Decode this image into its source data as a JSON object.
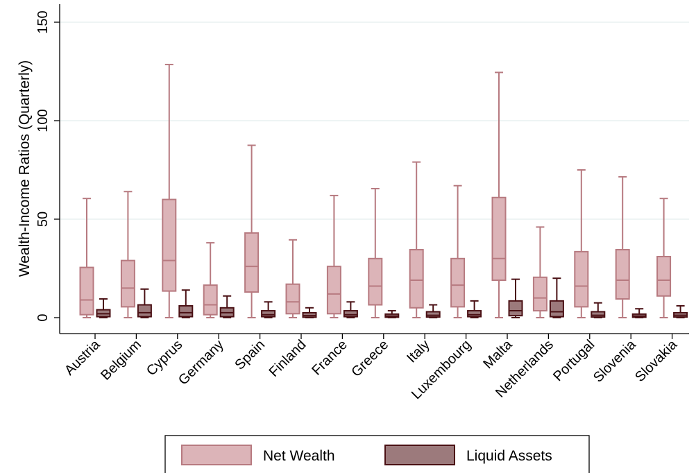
{
  "chart_data": {
    "type": "box",
    "title": "",
    "xlabel": "",
    "ylabel": "Wealth-Income Ratios (Quarterly)",
    "ylim": [
      -8,
      160
    ],
    "yticks": [
      0,
      50,
      100,
      150
    ],
    "yticks_labels": [
      "0",
      "50",
      "100",
      "150"
    ],
    "grid": true,
    "legend_position": "bottom",
    "categories": [
      "Austria",
      "Belgium",
      "Cyprus",
      "Germany",
      "Spain",
      "Finland",
      "France",
      "Greece",
      "Italy",
      "Luxembourg",
      "Malta",
      "Netherlands",
      "Portugal",
      "Slovenia",
      "Slovakia"
    ],
    "series": [
      {
        "name": "Net Wealth",
        "fill": "#dcb4b8",
        "stroke": "#b77a80",
        "boxes": [
          {
            "whisker_low": 0,
            "q1": 1.5,
            "median": 9,
            "q3": 25.5,
            "whisker_high": 60.5
          },
          {
            "whisker_low": 0,
            "q1": 5.5,
            "median": 15,
            "q3": 29,
            "whisker_high": 64
          },
          {
            "whisker_low": 0,
            "q1": 13.5,
            "median": 29,
            "q3": 60,
            "whisker_high": 128.5
          },
          {
            "whisker_low": 0,
            "q1": 1.5,
            "median": 6.5,
            "q3": 16.5,
            "whisker_high": 38
          },
          {
            "whisker_low": 0,
            "q1": 13,
            "median": 26,
            "q3": 43,
            "whisker_high": 87.5
          },
          {
            "whisker_low": 0,
            "q1": 2,
            "median": 8,
            "q3": 17,
            "whisker_high": 39.5
          },
          {
            "whisker_low": 0,
            "q1": 2,
            "median": 12,
            "q3": 26,
            "whisker_high": 62
          },
          {
            "whisker_low": 0,
            "q1": 6.5,
            "median": 16,
            "q3": 30,
            "whisker_high": 65.5
          },
          {
            "whisker_low": 0,
            "q1": 5,
            "median": 19,
            "q3": 34.5,
            "whisker_high": 79
          },
          {
            "whisker_low": 0,
            "q1": 5.5,
            "median": 16.5,
            "q3": 30,
            "whisker_high": 67
          },
          {
            "whisker_low": 0,
            "q1": 19,
            "median": 30,
            "q3": 61,
            "whisker_high": 124.5
          },
          {
            "whisker_low": 0,
            "q1": 3.5,
            "median": 10,
            "q3": 20.5,
            "whisker_high": 46
          },
          {
            "whisker_low": 0,
            "q1": 5.5,
            "median": 16,
            "q3": 33.5,
            "whisker_high": 75
          },
          {
            "whisker_low": 0,
            "q1": 9.5,
            "median": 19,
            "q3": 34.5,
            "whisker_high": 71.5
          },
          {
            "whisker_low": 0,
            "q1": 11,
            "median": 19,
            "q3": 31,
            "whisker_high": 60.5
          }
        ]
      },
      {
        "name": "Liquid Assets",
        "fill": "#9c7a7c",
        "stroke": "#4a1014",
        "boxes": [
          {
            "whisker_low": 0,
            "q1": 0.5,
            "median": 2,
            "q3": 4,
            "whisker_high": 9.5
          },
          {
            "whisker_low": 0,
            "q1": 0.5,
            "median": 2.5,
            "q3": 6.5,
            "whisker_high": 14.5
          },
          {
            "whisker_low": 0,
            "q1": 0.5,
            "median": 2.5,
            "q3": 6,
            "whisker_high": 14
          },
          {
            "whisker_low": 0,
            "q1": 0.5,
            "median": 2.5,
            "q3": 5,
            "whisker_high": 11
          },
          {
            "whisker_low": 0,
            "q1": 0.5,
            "median": 1.5,
            "q3": 3.5,
            "whisker_high": 8
          },
          {
            "whisker_low": 0,
            "q1": 0.2,
            "median": 1,
            "q3": 2.5,
            "whisker_high": 5
          },
          {
            "whisker_low": 0,
            "q1": 0.5,
            "median": 1.5,
            "q3": 3.5,
            "whisker_high": 8
          },
          {
            "whisker_low": 0,
            "q1": 0.2,
            "median": 0.8,
            "q3": 1.8,
            "whisker_high": 3.5
          },
          {
            "whisker_low": 0,
            "q1": 0.3,
            "median": 1.2,
            "q3": 3,
            "whisker_high": 6.5
          },
          {
            "whisker_low": 0,
            "q1": 0.5,
            "median": 1.5,
            "q3": 3.5,
            "whisker_high": 8.5
          },
          {
            "whisker_low": 0,
            "q1": 1,
            "median": 3.5,
            "q3": 8.5,
            "whisker_high": 19.5
          },
          {
            "whisker_low": 0,
            "q1": 0.5,
            "median": 3,
            "q3": 8.5,
            "whisker_high": 20
          },
          {
            "whisker_low": 0,
            "q1": 0.3,
            "median": 1.2,
            "q3": 3,
            "whisker_high": 7.5
          },
          {
            "whisker_low": 0,
            "q1": 0.2,
            "median": 0.8,
            "q3": 1.8,
            "whisker_high": 4.5
          },
          {
            "whisker_low": 0,
            "q1": 0.3,
            "median": 1.2,
            "q3": 2.5,
            "whisker_high": 6
          }
        ]
      }
    ]
  }
}
